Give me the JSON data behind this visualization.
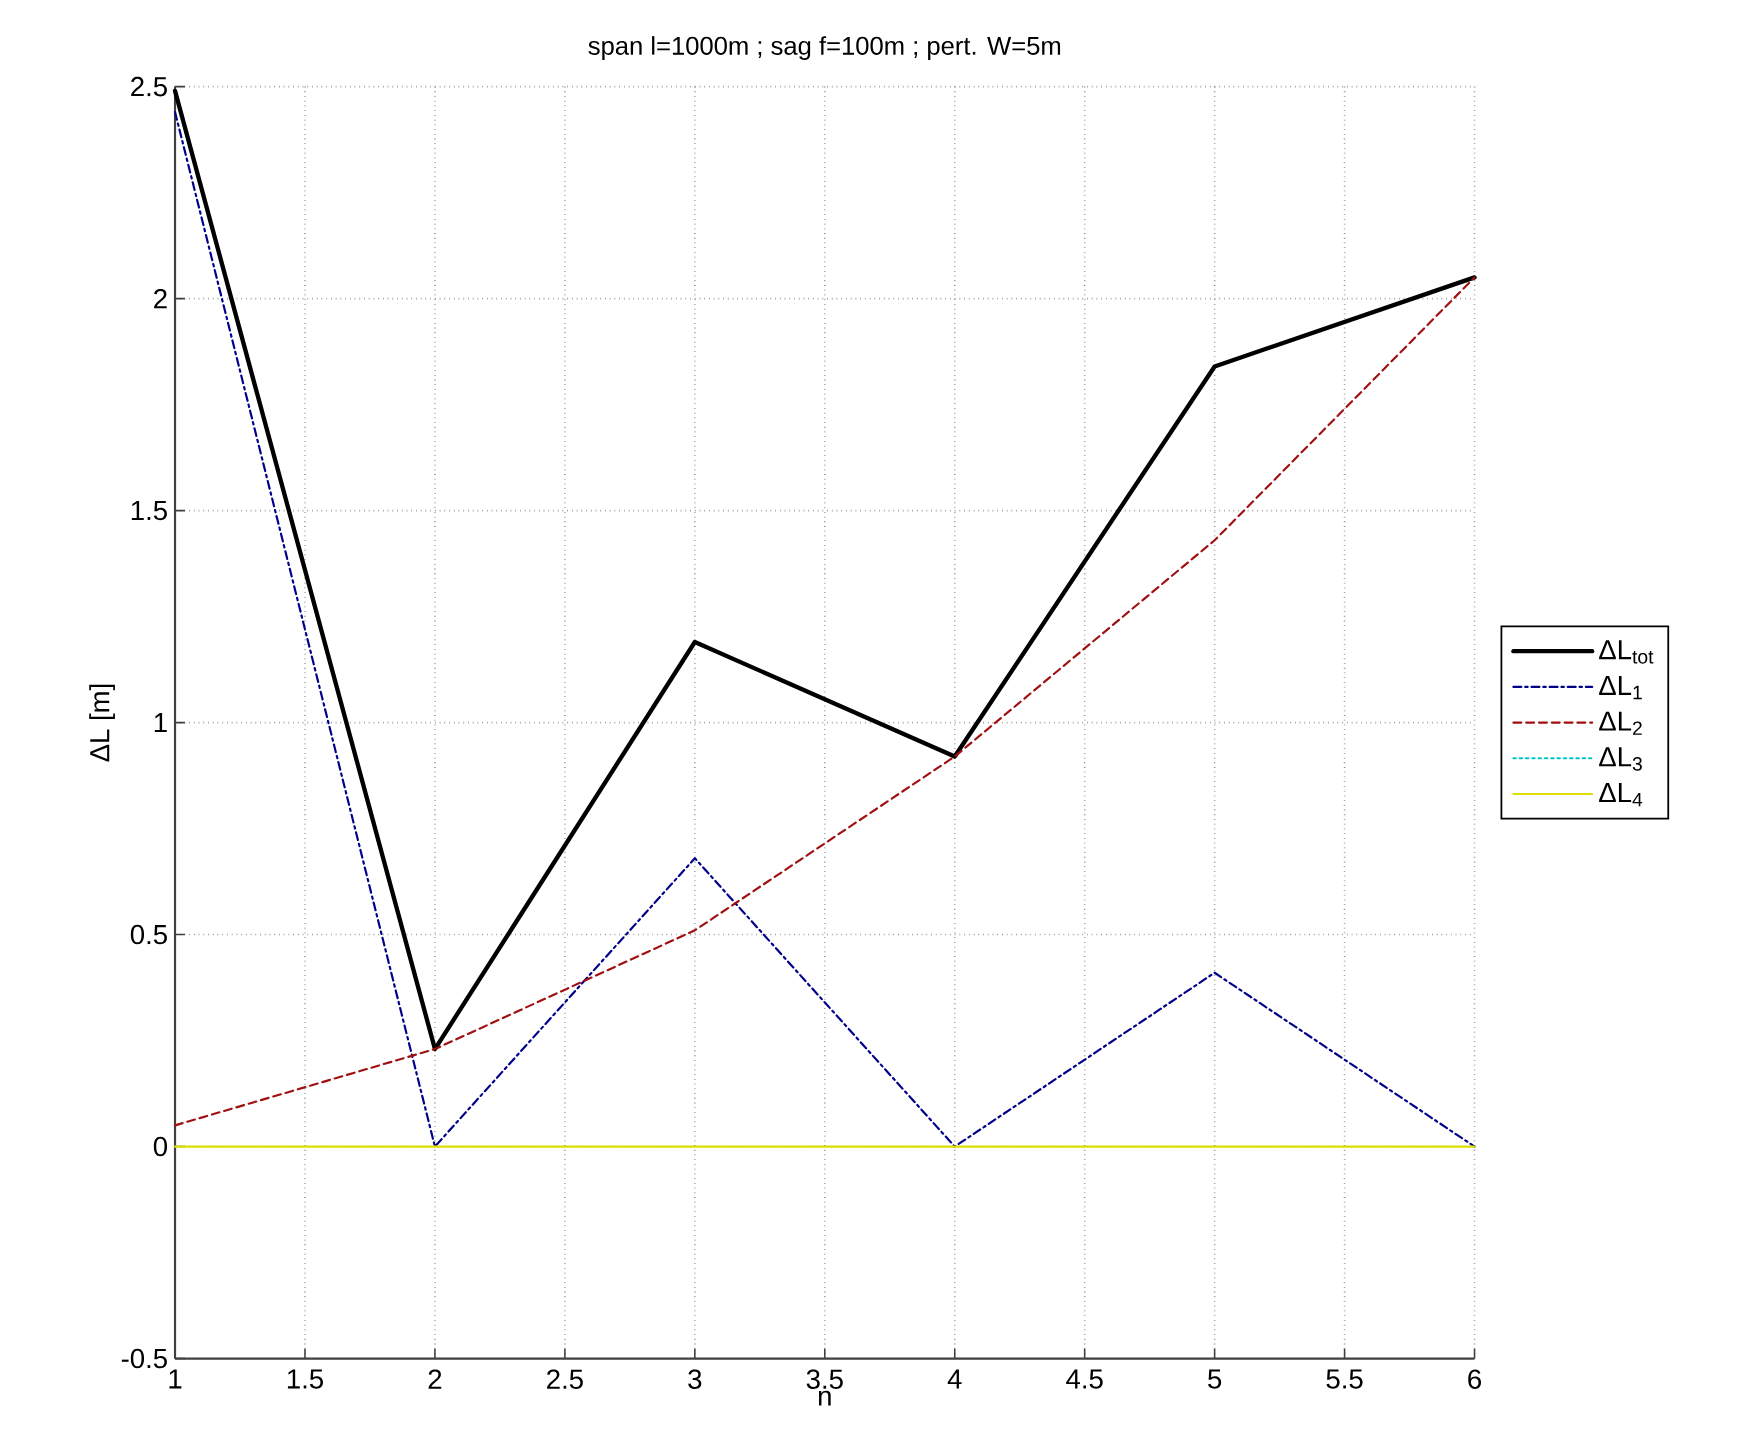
{
  "chart_data": {
    "type": "line",
    "title": "span l=1000m ; sag f=100m ; pert. W=5m",
    "xlabel": "n",
    "ylabel": "ΔL [m]",
    "x": [
      1,
      2,
      3,
      4,
      5,
      6
    ],
    "series": [
      {
        "name": "ΔL$_{tot}$",
        "color": "#000000",
        "line_style": "solid",
        "values": [
          2.49,
          0.23,
          1.19,
          0.92,
          1.84,
          2.05
        ]
      },
      {
        "name": "ΔL$_{1}$",
        "color": "#00008b",
        "line_style": "dashdot",
        "values": [
          2.44,
          0,
          0.68,
          0,
          0.41,
          0
        ]
      },
      {
        "name": "ΔL$_{2}$",
        "color": "#a01010",
        "line_style": "dashed",
        "values": [
          0.05,
          0.23,
          0.51,
          0.92,
          1.43,
          2.05
        ]
      },
      {
        "name": "ΔL$_{3}$",
        "color": "#00c8c8",
        "line_style": "dotted",
        "values": [
          null,
          null,
          null,
          null,
          null,
          null
        ]
      },
      {
        "name": "ΔL$_{4}$",
        "color": "#dede00",
        "line_style": "solid",
        "values": [
          0,
          0,
          0,
          0,
          0,
          0
        ]
      }
    ],
    "xlim": [
      1,
      6
    ],
    "ylim": [
      -0.5,
      2.5
    ],
    "xticks": [
      1,
      1.5,
      2,
      2.5,
      3,
      3.5,
      4,
      4.5,
      5,
      5.5,
      6
    ],
    "yticks": [
      -0.5,
      0,
      0.5,
      1,
      1.5,
      2,
      2.5
    ],
    "grid": true,
    "legend": "right"
  }
}
